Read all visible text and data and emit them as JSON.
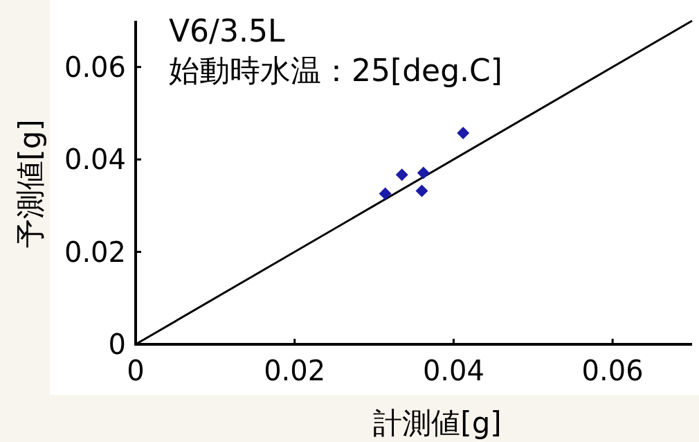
{
  "chart_data": {
    "type": "scatter",
    "xlabel": "計測値[g]",
    "ylabel": "予測値[g]",
    "annotations": [
      "V6/3.5L",
      "始動時水温：25[deg.C]"
    ],
    "xlim": [
      0,
      0.07
    ],
    "ylim": [
      0,
      0.07
    ],
    "xticks": [
      0,
      0.02,
      0.04,
      0.06
    ],
    "yticks": [
      0,
      0.02,
      0.04,
      0.06
    ],
    "marker": "diamond",
    "series": [
      {
        "color": "#1c1ca8",
        "x": [
          0.0314,
          0.0335,
          0.036,
          0.0362,
          0.0412
        ],
        "values": [
          0.0326,
          0.0367,
          0.0332,
          0.0371,
          0.0457
        ]
      },
      {
        "type": "line",
        "color": "#000000",
        "marker": "none",
        "x": [
          0,
          0.07
        ],
        "values": [
          0,
          0.07
        ]
      }
    ]
  }
}
